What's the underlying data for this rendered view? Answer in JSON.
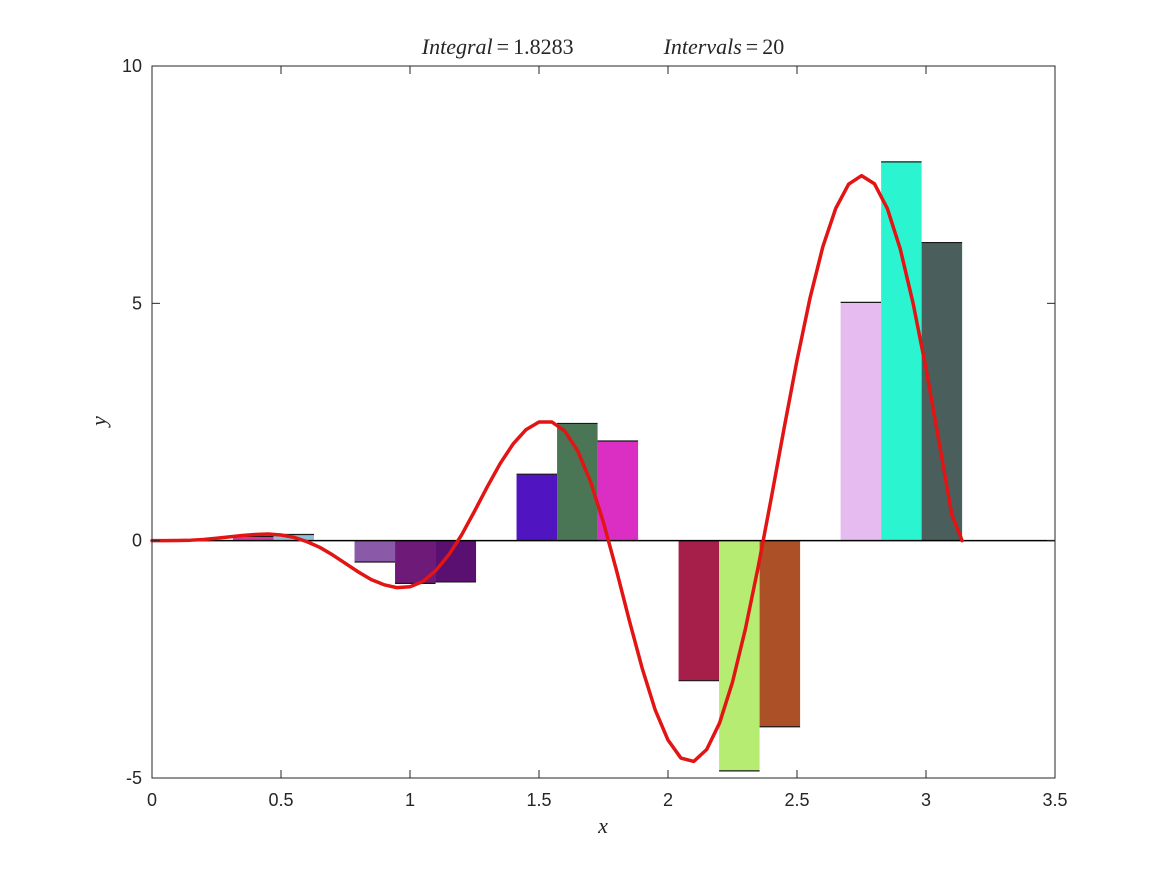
{
  "chart_data": {
    "type": "bar",
    "title": {
      "integral_label": "Integral",
      "integral_value": "1.8283",
      "intervals_label": "Intervals",
      "intervals_value": "20"
    },
    "xlabel": "x",
    "ylabel": "y",
    "xlim": [
      0,
      3.5
    ],
    "ylim": [
      -5,
      10
    ],
    "xticks": [
      0,
      0.5,
      1,
      1.5,
      2,
      2.5,
      3,
      3.5
    ],
    "xtick_labels": [
      "0",
      "0.5",
      "1",
      "1.5",
      "2",
      "2.5",
      "3",
      "3.5"
    ],
    "yticks": [
      -5,
      0,
      5,
      10
    ],
    "ytick_labels": [
      "-5",
      "0",
      "5",
      "10"
    ],
    "grid": false,
    "bar_width": 0.157,
    "bars": [
      {
        "x0": 0.0,
        "value": 0.0,
        "color": "#7a9a3a"
      },
      {
        "x0": 0.157,
        "value": 0.0,
        "color": "#3a6a9a"
      },
      {
        "x0": 0.314,
        "value": 0.09,
        "color": "#d83a9a"
      },
      {
        "x0": 0.471,
        "value": 0.13,
        "color": "#8fc0d8"
      },
      {
        "x0": 0.628,
        "value": 0.0,
        "color": "#555555"
      },
      {
        "x0": 0.785,
        "value": -0.45,
        "color": "#8a5aa8"
      },
      {
        "x0": 0.942,
        "value": -0.9,
        "color": "#6e1a78"
      },
      {
        "x0": 1.099,
        "value": -0.87,
        "color": "#5a1070"
      },
      {
        "x0": 1.256,
        "value": 0.0,
        "color": "#555555"
      },
      {
        "x0": 1.413,
        "value": 1.4,
        "color": "#5015c0"
      },
      {
        "x0": 1.57,
        "value": 2.47,
        "color": "#4a7656"
      },
      {
        "x0": 1.727,
        "value": 2.1,
        "color": "#db2fc4"
      },
      {
        "x0": 1.884,
        "value": 0.0,
        "color": "#555555"
      },
      {
        "x0": 2.041,
        "value": -2.95,
        "color": "#a61f4a"
      },
      {
        "x0": 2.198,
        "value": -4.85,
        "color": "#b6ec72"
      },
      {
        "x0": 2.355,
        "value": -3.92,
        "color": "#ab5027"
      },
      {
        "x0": 2.512,
        "value": 0.0,
        "color": "#555555"
      },
      {
        "x0": 2.669,
        "value": 5.02,
        "color": "#e5bbf0"
      },
      {
        "x0": 2.826,
        "value": 7.98,
        "color": "#2bf5d1"
      },
      {
        "x0": 2.983,
        "value": 6.28,
        "color": "#4a5e5c"
      }
    ],
    "curve": {
      "color": "#e21414",
      "x": [
        0,
        0.05,
        0.1,
        0.15,
        0.2,
        0.25,
        0.3,
        0.35,
        0.4,
        0.45,
        0.5,
        0.55,
        0.6,
        0.65,
        0.7,
        0.75,
        0.8,
        0.85,
        0.9,
        0.95,
        1.0,
        1.05,
        1.1,
        1.15,
        1.2,
        1.25,
        1.3,
        1.35,
        1.4,
        1.45,
        1.5,
        1.55,
        1.6,
        1.65,
        1.7,
        1.75,
        1.8,
        1.85,
        1.9,
        1.95,
        2.0,
        2.05,
        2.1,
        2.15,
        2.2,
        2.25,
        2.3,
        2.35,
        2.4,
        2.45,
        2.5,
        2.55,
        2.6,
        2.65,
        2.7,
        2.75,
        2.8,
        2.85,
        2.9,
        2.95,
        3.0,
        3.05,
        3.1,
        3.14
      ],
      "y": [
        0,
        0.0,
        0.003,
        0.01,
        0.025,
        0.05,
        0.08,
        0.11,
        0.13,
        0.14,
        0.12,
        0.07,
        -0.02,
        -0.14,
        -0.3,
        -0.48,
        -0.66,
        -0.82,
        -0.93,
        -0.99,
        -0.97,
        -0.86,
        -0.63,
        -0.3,
        0.12,
        0.62,
        1.14,
        1.63,
        2.04,
        2.34,
        2.5,
        2.5,
        2.31,
        1.89,
        1.24,
        0.38,
        -0.62,
        -1.68,
        -2.69,
        -3.56,
        -4.2,
        -4.58,
        -4.65,
        -4.4,
        -3.84,
        -2.98,
        -1.86,
        -0.54,
        0.89,
        2.37,
        3.8,
        5.1,
        6.19,
        7.0,
        7.51,
        7.69,
        7.52,
        7.0,
        6.15,
        5.0,
        3.63,
        2.1,
        0.55,
        0.0
      ]
    }
  }
}
